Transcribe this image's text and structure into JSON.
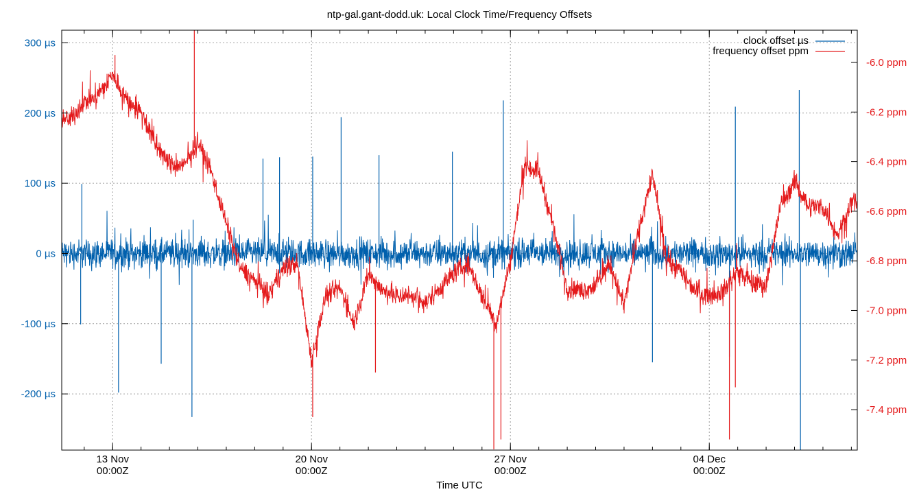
{
  "chart_data": {
    "type": "line",
    "title": "ntp-gal.gant-dodd.uk: Local Clock Time/Frequency Offsets",
    "xlabel": "Time UTC",
    "xlim": [
      "11 Nov 05:00",
      "9 Dec 05:00"
    ],
    "x_ticks": [
      {
        "date": "13 Nov",
        "time": "00:00Z"
      },
      {
        "date": "20 Nov",
        "time": "00:00Z"
      },
      {
        "date": "27 Nov",
        "time": "00:00Z"
      },
      {
        "date": "04 Dec",
        "time": "00:00Z"
      }
    ],
    "y1": {
      "ylim": [
        -280,
        318
      ],
      "ticks": [
        300,
        200,
        100,
        0,
        -100,
        -200
      ],
      "tick_labels": [
        "300 µs",
        "200 µs",
        "100 µs",
        "0 µs",
        "-100 µs",
        "-200 µs"
      ],
      "color": "#0060ad"
    },
    "y2": {
      "ylim": [
        -7.563,
        -5.87
      ],
      "ticks": [
        -6.0,
        -6.2,
        -6.4,
        -6.6,
        -6.8,
        -7.0,
        -7.2,
        -7.4
      ],
      "tick_labels": [
        "-6.0 ppm",
        "-6.2 ppm",
        "-6.4 ppm",
        "-6.6 ppm",
        "-6.8 ppm",
        "-7.0 ppm",
        "-7.2 ppm",
        "-7.4 ppm"
      ],
      "color": "#e41a1c"
    },
    "grid": true,
    "legend_placement": "top-right",
    "series": [
      {
        "name": "clock offset µs",
        "axis": "y1",
        "color": "#0060ad",
        "baseline_points": [
          [
            "11 Nov 05:00",
            0
          ],
          [
            "9 Dec 05:00",
            0
          ]
        ],
        "typical_spread": 30,
        "spikes": [
          [
            "11 Nov 21:00",
            -101
          ],
          [
            "11 Nov 22:00",
            99
          ],
          [
            "13 Nov 05:00",
            -198
          ],
          [
            "14 Nov 17:00",
            -157
          ],
          [
            "15 Nov 19:00",
            -233
          ],
          [
            "15 Nov 20:00",
            48
          ],
          [
            "18 Nov 07:00",
            135
          ],
          [
            "18 Nov 21:00",
            137
          ],
          [
            "20 Nov 01:00",
            138
          ],
          [
            "21 Nov 01:00",
            194
          ],
          [
            "22 Nov 09:00",
            140
          ],
          [
            "24 Nov 23:00",
            145
          ],
          [
            "26 Nov 18:00",
            218
          ],
          [
            "2 Dec 00:00",
            -155
          ],
          [
            "4 Dec 17:00",
            -147
          ],
          [
            "4 Dec 22:00",
            209
          ],
          [
            "7 Dec 04:00",
            233
          ],
          [
            "7 Dec 05:00",
            -280
          ]
        ]
      },
      {
        "name": "frequency offset ppm",
        "axis": "y2",
        "color": "#e41a1c",
        "points": [
          [
            "11 Nov 12:00",
            -6.23
          ],
          [
            "12 Nov 00:00",
            -6.16
          ],
          [
            "12 Nov 12:00",
            -6.13
          ],
          [
            "13 Nov 00:00",
            -6.05
          ],
          [
            "13 Nov 12:00",
            -6.15
          ],
          [
            "14 Nov 00:00",
            -6.2
          ],
          [
            "14 Nov 12:00",
            -6.33
          ],
          [
            "15 Nov 00:00",
            -6.41
          ],
          [
            "15 Nov 12:00",
            -6.42
          ],
          [
            "16 Nov 00:00",
            -6.32
          ],
          [
            "16 Nov 12:00",
            -6.45
          ],
          [
            "17 Nov 00:00",
            -6.65
          ],
          [
            "17 Nov 12:00",
            -6.83
          ],
          [
            "18 Nov 00:00",
            -6.88
          ],
          [
            "18 Nov 12:00",
            -6.94
          ],
          [
            "19 Nov 00:00",
            -6.83
          ],
          [
            "19 Nov 12:00",
            -6.81
          ],
          [
            "20 Nov 00:00",
            -7.2
          ],
          [
            "20 Nov 12:00",
            -6.94
          ],
          [
            "21 Nov 00:00",
            -6.91
          ],
          [
            "21 Nov 12:00",
            -7.05
          ],
          [
            "22 Nov 00:00",
            -6.85
          ],
          [
            "22 Nov 12:00",
            -6.92
          ],
          [
            "23 Nov 00:00",
            -6.94
          ],
          [
            "23 Nov 12:00",
            -6.94
          ],
          [
            "24 Nov 00:00",
            -6.97
          ],
          [
            "24 Nov 12:00",
            -6.91
          ],
          [
            "25 Nov 00:00",
            -6.85
          ],
          [
            "25 Nov 12:00",
            -6.81
          ],
          [
            "26 Nov 00:00",
            -6.94
          ],
          [
            "26 Nov 12:00",
            -7.05
          ],
          [
            "27 Nov 00:00",
            -6.8
          ],
          [
            "27 Nov 12:00",
            -6.41
          ],
          [
            "28 Nov 00:00",
            -6.44
          ],
          [
            "28 Nov 12:00",
            -6.66
          ],
          [
            "29 Nov 00:00",
            -6.91
          ],
          [
            "29 Nov 12:00",
            -6.92
          ],
          [
            "30 Nov 00:00",
            -6.9
          ],
          [
            "30 Nov 12:00",
            -6.81
          ],
          [
            "1 Dec 00:00",
            -6.98
          ],
          [
            "1 Dec 12:00",
            -6.69
          ],
          [
            "2 Dec 00:00",
            -6.45
          ],
          [
            "2 Dec 12:00",
            -6.8
          ],
          [
            "3 Dec 00:00",
            -6.84
          ],
          [
            "3 Dec 12:00",
            -6.92
          ],
          [
            "4 Dec 00:00",
            -6.94
          ],
          [
            "4 Dec 12:00",
            -6.92
          ],
          [
            "5 Dec 00:00",
            -6.84
          ],
          [
            "5 Dec 12:00",
            -6.89
          ],
          [
            "6 Dec 00:00",
            -6.9
          ],
          [
            "6 Dec 12:00",
            -6.58
          ],
          [
            "7 Dec 00:00",
            -6.48
          ],
          [
            "7 Dec 12:00",
            -6.58
          ],
          [
            "8 Dec 00:00",
            -6.58
          ],
          [
            "8 Dec 12:00",
            -6.7
          ],
          [
            "9 Dec 00:00",
            -6.56
          ]
        ],
        "typical_spread": 0.06,
        "spikes": [
          [
            "13 Nov 02:00",
            -5.97
          ],
          [
            "15 Nov 21:00",
            -5.87
          ],
          [
            "20 Nov 01:00",
            -7.43
          ],
          [
            "22 Nov 06:00",
            -7.25
          ],
          [
            "26 Nov 10:00",
            -7.56
          ],
          [
            "26 Nov 16:00",
            -7.52
          ],
          [
            "4 Dec 17:00",
            -7.52
          ],
          [
            "4 Dec 22:00",
            -7.31
          ]
        ]
      }
    ]
  }
}
